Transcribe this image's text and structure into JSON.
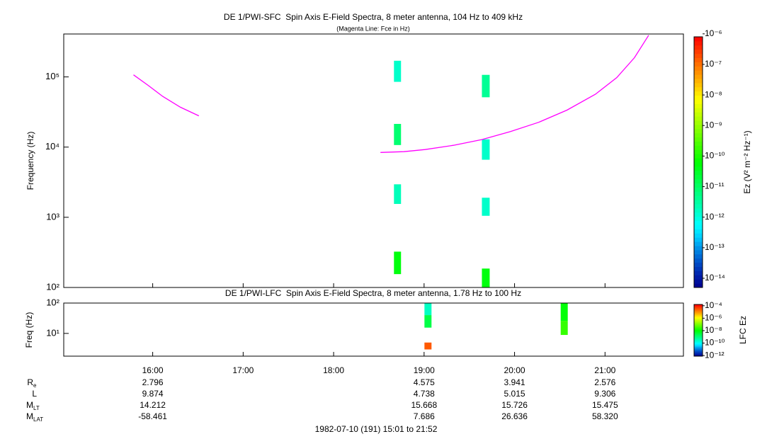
{
  "chart_data": [
    {
      "type": "spectrogram",
      "title": "DE 1/PWI-SFC  Spin Axis E-Field Spectra, 8 meter antenna, 104 Hz to 409 kHz",
      "subtitle": "(Magenta Line: Fce in Hz)",
      "y_label": "Frequency (Hz)",
      "log_y": true,
      "xlim": [
        15.0167,
        21.8667
      ],
      "xticks": [
        {
          "value": 16,
          "label": "16:00"
        },
        {
          "value": 17,
          "label": "17:00"
        },
        {
          "value": 18,
          "label": "18:00"
        },
        {
          "value": 19,
          "label": "19:00"
        },
        {
          "value": 20,
          "label": "20:00"
        },
        {
          "value": 21,
          "label": "21:00"
        }
      ],
      "ylim": [
        100,
        409000
      ],
      "yticks": [
        {
          "value": 100,
          "label": "10²"
        },
        {
          "value": 1000,
          "label": "10³"
        },
        {
          "value": 10000,
          "label": "10⁴"
        },
        {
          "value": 100000,
          "label": "10⁵"
        }
      ],
      "cells": [
        {
          "t": [
            18.667,
            18.745
          ],
          "f": [
            85100,
            170000
          ],
          "value": 1.5e-12
        },
        {
          "t": [
            18.667,
            18.745
          ],
          "f": [
            10700,
            21400
          ],
          "value": 8e-12
        },
        {
          "t": [
            18.667,
            18.745
          ],
          "f": [
            1550,
            2950
          ],
          "value": 2e-12
        },
        {
          "t": [
            18.667,
            18.745
          ],
          "f": [
            155,
            324
          ],
          "value": 5e-11
        },
        {
          "t": [
            19.639,
            19.725
          ],
          "f": [
            51300,
            107000
          ],
          "value": 4e-12
        },
        {
          "t": [
            19.639,
            19.725
          ],
          "f": [
            6610,
            12900
          ],
          "value": 1.5e-12
        },
        {
          "t": [
            19.639,
            19.725
          ],
          "f": [
            1050,
            1900
          ],
          "value": 1.5e-12
        },
        {
          "t": [
            19.639,
            19.725
          ],
          "f": [
            100,
            186
          ],
          "value": 5e-11
        }
      ],
      "series": [
        {
          "color": "#ff00ff",
          "x": [
            15.788,
            15.953,
            16.11,
            16.306,
            16.51,
            17.5,
            18.518,
            18.776,
            19.012,
            19.325,
            19.639,
            19.953,
            20.267,
            20.58,
            20.894,
            21.129,
            21.325,
            21.482
          ],
          "values": [
            107000,
            75200,
            52800,
            37000,
            27900,
            null,
            8400,
            8600,
            9230,
            10600,
            12800,
            16600,
            22600,
            33700,
            56600,
            97500,
            188000,
            392000
          ]
        }
      ],
      "colorbar": {
        "label": "Ez (V² m⁻² Hz⁻¹)",
        "log": true,
        "lim": [
          5e-15,
          8e-07
        ],
        "ticks": [
          {
            "value": 1e-14,
            "label": "10⁻¹⁴"
          },
          {
            "value": 1e-13,
            "label": "10⁻¹³"
          },
          {
            "value": 1e-12,
            "label": "10⁻¹²"
          },
          {
            "value": 1e-11,
            "label": "10⁻¹¹"
          },
          {
            "value": 1e-10,
            "label": "10⁻¹⁰"
          },
          {
            "value": 1e-09,
            "label": "10⁻⁹"
          },
          {
            "value": 1e-08,
            "label": "10⁻⁸"
          },
          {
            "value": 1e-07,
            "label": "10⁻⁷"
          },
          {
            "value": 1e-06,
            "label": "10⁻⁶"
          }
        ]
      }
    },
    {
      "type": "spectrogram",
      "title": "DE 1/PWI-LFC  Spin Axis E-Field Spectra, 8 meter antenna, 1.78 Hz to 100 Hz",
      "y_label": "Freq (Hz)",
      "log_y": true,
      "xlim": [
        15.0167,
        21.8667
      ],
      "xticks": [
        {
          "value": 16,
          "label": "16:00"
        },
        {
          "value": 17,
          "label": "17:00"
        },
        {
          "value": 18,
          "label": "18:00"
        },
        {
          "value": 19,
          "label": "19:00"
        },
        {
          "value": 20,
          "label": "20:00"
        },
        {
          "value": 21,
          "label": "21:00"
        }
      ],
      "ylim": [
        1.78,
        100
      ],
      "yticks": [
        {
          "value": 10,
          "label": "10¹"
        },
        {
          "value": 100,
          "label": "10²"
        }
      ],
      "cells": [
        {
          "t": [
            19.004,
            19.082
          ],
          "f": [
            40,
            100
          ],
          "value": 3e-10
        },
        {
          "t": [
            19.004,
            19.082
          ],
          "f": [
            15.5,
            40
          ],
          "value": 3e-09
        },
        {
          "t": [
            19.004,
            19.082
          ],
          "f": [
            2.96,
            5.0
          ],
          "value": 3e-05
        },
        {
          "t": [
            20.51,
            20.588
          ],
          "f": [
            26,
            100
          ],
          "value": 1e-08
        },
        {
          "t": [
            20.51,
            20.588
          ],
          "f": [
            8.9,
            26
          ],
          "value": 3e-08
        }
      ],
      "colorbar": {
        "label": "LFC Ez",
        "log": true,
        "lim": [
          8e-13,
          0.00016
        ],
        "ticks": [
          {
            "value": 1e-12,
            "label": "10⁻¹²"
          },
          {
            "value": 1e-10,
            "label": "10⁻¹⁰"
          },
          {
            "value": 1e-08,
            "label": "10⁻⁸"
          },
          {
            "value": 1e-06,
            "label": "10⁻⁶"
          },
          {
            "value": 0.0001,
            "label": "10⁻⁴"
          }
        ]
      }
    }
  ],
  "ephemeris": [
    {
      "label": "R",
      "sub": "e",
      "values": [
        "2.796",
        null,
        null,
        "4.575",
        "3.941",
        "2.576"
      ]
    },
    {
      "label": "L",
      "values": [
        "9.874",
        null,
        null,
        "4.738",
        "5.015",
        "9.306"
      ]
    },
    {
      "label": "M",
      "sub": "LT",
      "values": [
        "14.212",
        null,
        null,
        "15.668",
        "15.726",
        "15.475"
      ]
    },
    {
      "label": "M",
      "sub": "LAT",
      "values": [
        "-58.461",
        null,
        null,
        "7.686",
        "26.636",
        "58.320"
      ]
    }
  ],
  "footer": "1982-07-10 (191) 15:01 to 21:52"
}
